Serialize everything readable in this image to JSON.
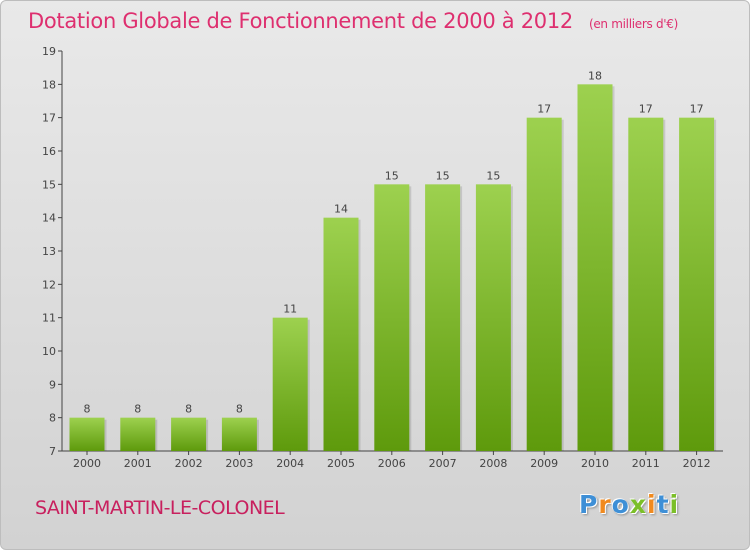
{
  "title": "Dotation Globale de Fonctionnement de 2000 à 2012",
  "unit_note": "(en milliers d'€)",
  "commune": "SAINT-MARTIN-LE-COLONEL",
  "logo": "Proxiti",
  "colors": {
    "title": "#de2f6f",
    "bar_top": "#9dd14f",
    "bar_bottom": "#5e9a0c",
    "commune": "#c8205e",
    "logo_letters": [
      "#3e8fd6",
      "#f08a1f",
      "#3e8fd6",
      "#7bbf28",
      "#f08a1f",
      "#3e8fd6",
      "#7bbf28"
    ]
  },
  "chart_data": {
    "type": "bar",
    "title": "Dotation Globale de Fonctionnement de 2000 à 2012",
    "categories": [
      "2000",
      "2001",
      "2002",
      "2003",
      "2004",
      "2005",
      "2006",
      "2007",
      "2008",
      "2009",
      "2010",
      "2011",
      "2012"
    ],
    "values": [
      8,
      8,
      8,
      8,
      11,
      14,
      15,
      15,
      15,
      17,
      18,
      17,
      17
    ],
    "xlabel": "",
    "ylabel": "",
    "ylim": [
      7,
      19
    ],
    "yticks": [
      7,
      8,
      9,
      10,
      11,
      12,
      13,
      14,
      15,
      16,
      17,
      18,
      19
    ],
    "grid": false,
    "legend": "none",
    "data_labels": true
  }
}
